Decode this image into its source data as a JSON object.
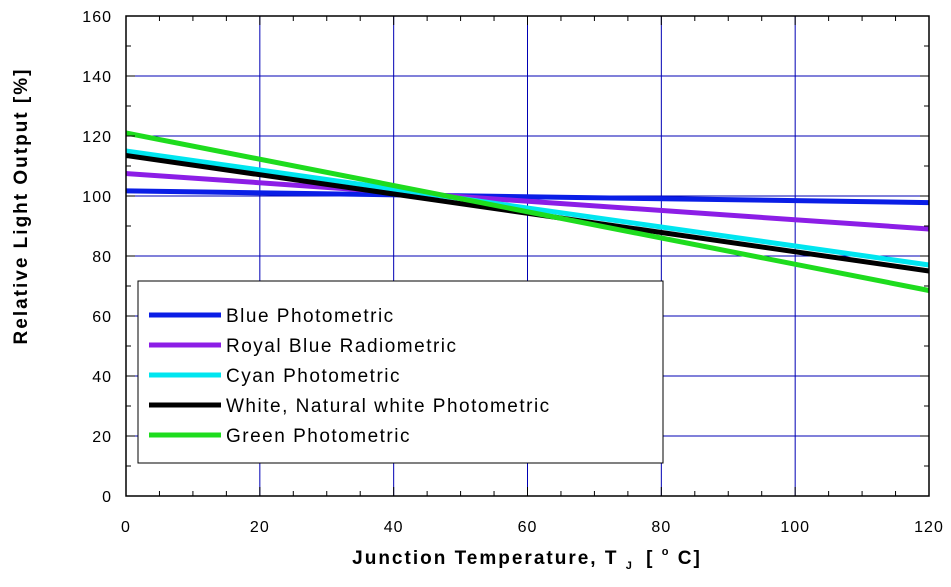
{
  "chart_data": {
    "type": "line",
    "title": "",
    "xlabel": "Junction Temperature, T",
    "xlabel_subscript": "J",
    "xlabel_unit_open": "[",
    "xlabel_degree": "o",
    "xlabel_unit_close": "C]",
    "ylabel": "Relative Light Output [%]",
    "xlim": [
      0,
      120
    ],
    "ylim": [
      0,
      160
    ],
    "x_ticks": [
      "0",
      "20",
      "40",
      "60",
      "80",
      "100",
      "120"
    ],
    "y_ticks": [
      "0",
      "20",
      "40",
      "60",
      "80",
      "100",
      "120",
      "140",
      "160"
    ],
    "grid": true,
    "legend_position": "bottom-left",
    "series": [
      {
        "name": "Blue Photometric",
        "color": "#0a1ee6",
        "x": [
          0,
          120
        ],
        "y": [
          101.7,
          97.8
        ]
      },
      {
        "name": "Royal Blue Radiometric",
        "color": "#8c1ee6",
        "x": [
          0,
          120
        ],
        "y": [
          107.5,
          89.0
        ]
      },
      {
        "name": "Cyan Photometric",
        "color": "#00e6f0",
        "x": [
          0,
          120
        ],
        "y": [
          115.0,
          77.0
        ]
      },
      {
        "name": "White, Natural white Photometric",
        "color": "#000000",
        "x": [
          0,
          120
        ],
        "y": [
          113.5,
          75.0
        ]
      },
      {
        "name": "Green Photometric",
        "color": "#1edc1e",
        "x": [
          0,
          120
        ],
        "y": [
          121.0,
          68.5
        ]
      }
    ]
  }
}
